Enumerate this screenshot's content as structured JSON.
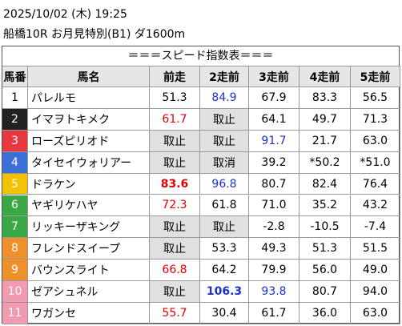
{
  "header": {
    "datetime": "2025/10/02 (木) 19:25",
    "race": "船橋10R お月見特別(B1) ダ1600m"
  },
  "table": {
    "title": "＝＝＝スピード指数表＝＝＝",
    "columns": [
      "馬番",
      "馬名",
      "前走",
      "2走前",
      "3走前",
      "4走前",
      "5走前"
    ],
    "rows": [
      {
        "no": "1",
        "frame_color": "#ffffff",
        "no_color": "#000000",
        "name": "パレルモ",
        "cells": [
          "51.3",
          {
            "text": "84.9",
            "color": "#1a33cc"
          },
          "67.9",
          "83.3",
          "56.5"
        ]
      },
      {
        "no": "2",
        "frame_color": "#222222",
        "no_color": "#ffffff",
        "name": "イマヲトキメク",
        "cells": [
          {
            "text": "61.7",
            "color": "#e00000"
          },
          {
            "text": "取止",
            "shade": "#e0e0e0"
          },
          "64.1",
          "49.7",
          "71.3"
        ]
      },
      {
        "no": "3",
        "frame_color": "#e8383d",
        "no_color": "#ffffff",
        "name": "ローズピリオド",
        "cells": [
          {
            "text": "取止",
            "shade": "#e0e0e0"
          },
          {
            "text": "取止",
            "shade": "#e0e0e0"
          },
          {
            "text": "91.7",
            "color": "#1a33cc"
          },
          "21.7",
          "63.0"
        ]
      },
      {
        "no": "4",
        "frame_color": "#3a6fd8",
        "no_color": "#ffffff",
        "name": "タイセイウォリアー",
        "cells": [
          {
            "text": "取止",
            "shade": "#e0e0e0"
          },
          {
            "text": "取消",
            "shade": "#e0e0e0"
          },
          "39.2",
          "*50.2",
          "*51.0"
        ]
      },
      {
        "no": "5",
        "frame_color": "#f2c200",
        "no_color": "#ffffff",
        "name": "ドラケン",
        "cells": [
          {
            "text": "83.6",
            "color": "#e00000",
            "bold": true
          },
          {
            "text": "96.8",
            "color": "#1a33cc"
          },
          "80.7",
          "82.4",
          "76.4"
        ]
      },
      {
        "no": "6",
        "frame_color": "#3aa845",
        "no_color": "#ffffff",
        "name": "ヤギリケハヤ",
        "cells": [
          {
            "text": "72.3",
            "color": "#e00000"
          },
          "61.8",
          "71.0",
          "35.2",
          "43.2"
        ]
      },
      {
        "no": "7",
        "frame_color": "#3aa845",
        "no_color": "#ffffff",
        "name": "リッキーザキング",
        "cells": [
          {
            "text": "取止",
            "shade": "#e0e0e0"
          },
          {
            "text": "取止",
            "shade": "#e0e0e0"
          },
          "-2.8",
          "-10.5",
          "-7.4"
        ]
      },
      {
        "no": "8",
        "frame_color": "#f0902a",
        "no_color": "#ffffff",
        "name": "フレンドスイープ",
        "cells": [
          {
            "text": "取止",
            "shade": "#e0e0e0"
          },
          "53.3",
          "49.3",
          "51.3",
          "51.5"
        ]
      },
      {
        "no": "9",
        "frame_color": "#f0902a",
        "no_color": "#ffffff",
        "name": "バウンスライト",
        "cells": [
          {
            "text": "66.8",
            "color": "#e00000"
          },
          "64.2",
          "79.9",
          "56.0",
          "49.0"
        ]
      },
      {
        "no": "10",
        "frame_color": "#f29bb0",
        "no_color": "#ffffff",
        "name": "ゼアシュネル",
        "cells": [
          {
            "text": "取止",
            "shade": "#e0e0e0"
          },
          {
            "text": "106.3",
            "color": "#1a33cc",
            "bold": true
          },
          {
            "text": "93.8",
            "color": "#1a33cc"
          },
          "80.7",
          "94.0"
        ]
      },
      {
        "no": "11",
        "frame_color": "#f29bb0",
        "no_color": "#ffffff",
        "name": "ワガンセ",
        "cells": [
          {
            "text": "55.7",
            "color": "#e00000"
          },
          "30.4",
          "61.7",
          "36.0",
          "63.0"
        ]
      }
    ]
  }
}
